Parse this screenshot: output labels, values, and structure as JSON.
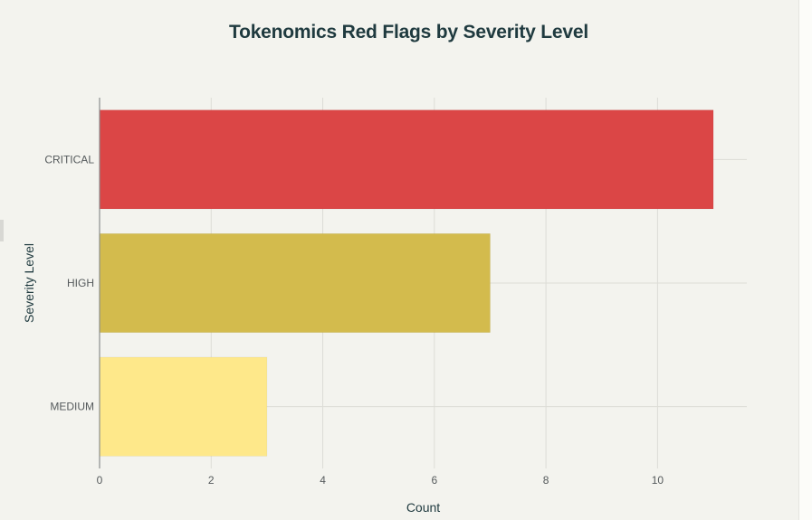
{
  "chart_data": {
    "type": "bar",
    "orientation": "horizontal",
    "title": "Tokenomics Red Flags by Severity Level",
    "xlabel": "Count",
    "ylabel": "Severity Level",
    "categories": [
      "CRITICAL",
      "HIGH",
      "MEDIUM"
    ],
    "values": [
      11,
      7,
      3
    ],
    "colors": [
      "#db4646",
      "#d3bb4d",
      "#fee88a"
    ],
    "xlim": [
      0,
      11.6
    ],
    "xticks": [
      0,
      2,
      4,
      6,
      8,
      10
    ],
    "grid": true,
    "legend": "none"
  }
}
